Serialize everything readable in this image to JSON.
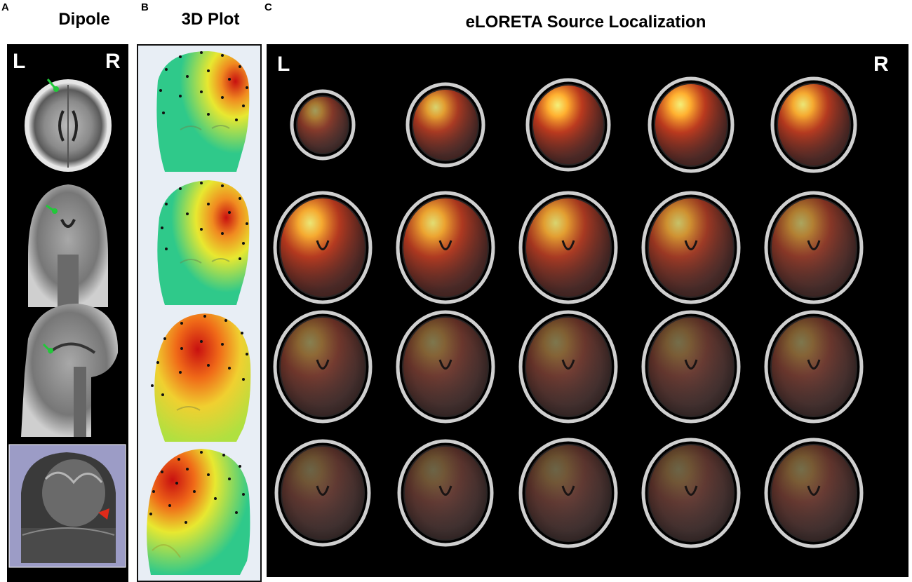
{
  "panels": {
    "a": {
      "letter": "A",
      "title": "Dipole",
      "left_label": "L",
      "right_label": "R"
    },
    "b": {
      "letter": "B",
      "title": "3D Plot"
    },
    "c": {
      "letter": "C",
      "title": "eLORETA Source Localization",
      "left_label": "L",
      "right_label": "R"
    }
  },
  "colors": {
    "dipole_marker": "#22c83a",
    "surface_background": "#9c9cc6",
    "surface_marker": "#e02a1a",
    "map_low": "#2fc98a",
    "map_mid": "#e8e830",
    "map_high": "#c81010",
    "activation": "#ff6a1a",
    "activation_peak": "#f4f07a"
  },
  "headmaps": [
    {
      "hotspot": "top-right"
    },
    {
      "hotspot": "upper-right"
    },
    {
      "hotspot": "top-center"
    },
    {
      "hotspot": "upper-left"
    }
  ],
  "slices": {
    "rows": 4,
    "cols": 5,
    "intensity": [
      [
        0.55,
        0.85,
        1.0,
        1.0,
        0.95
      ],
      [
        0.95,
        0.9,
        0.85,
        0.75,
        0.6
      ],
      [
        0.4,
        0.35,
        0.35,
        0.3,
        0.35
      ],
      [
        0.25,
        0.25,
        0.25,
        0.25,
        0.3
      ]
    ]
  }
}
